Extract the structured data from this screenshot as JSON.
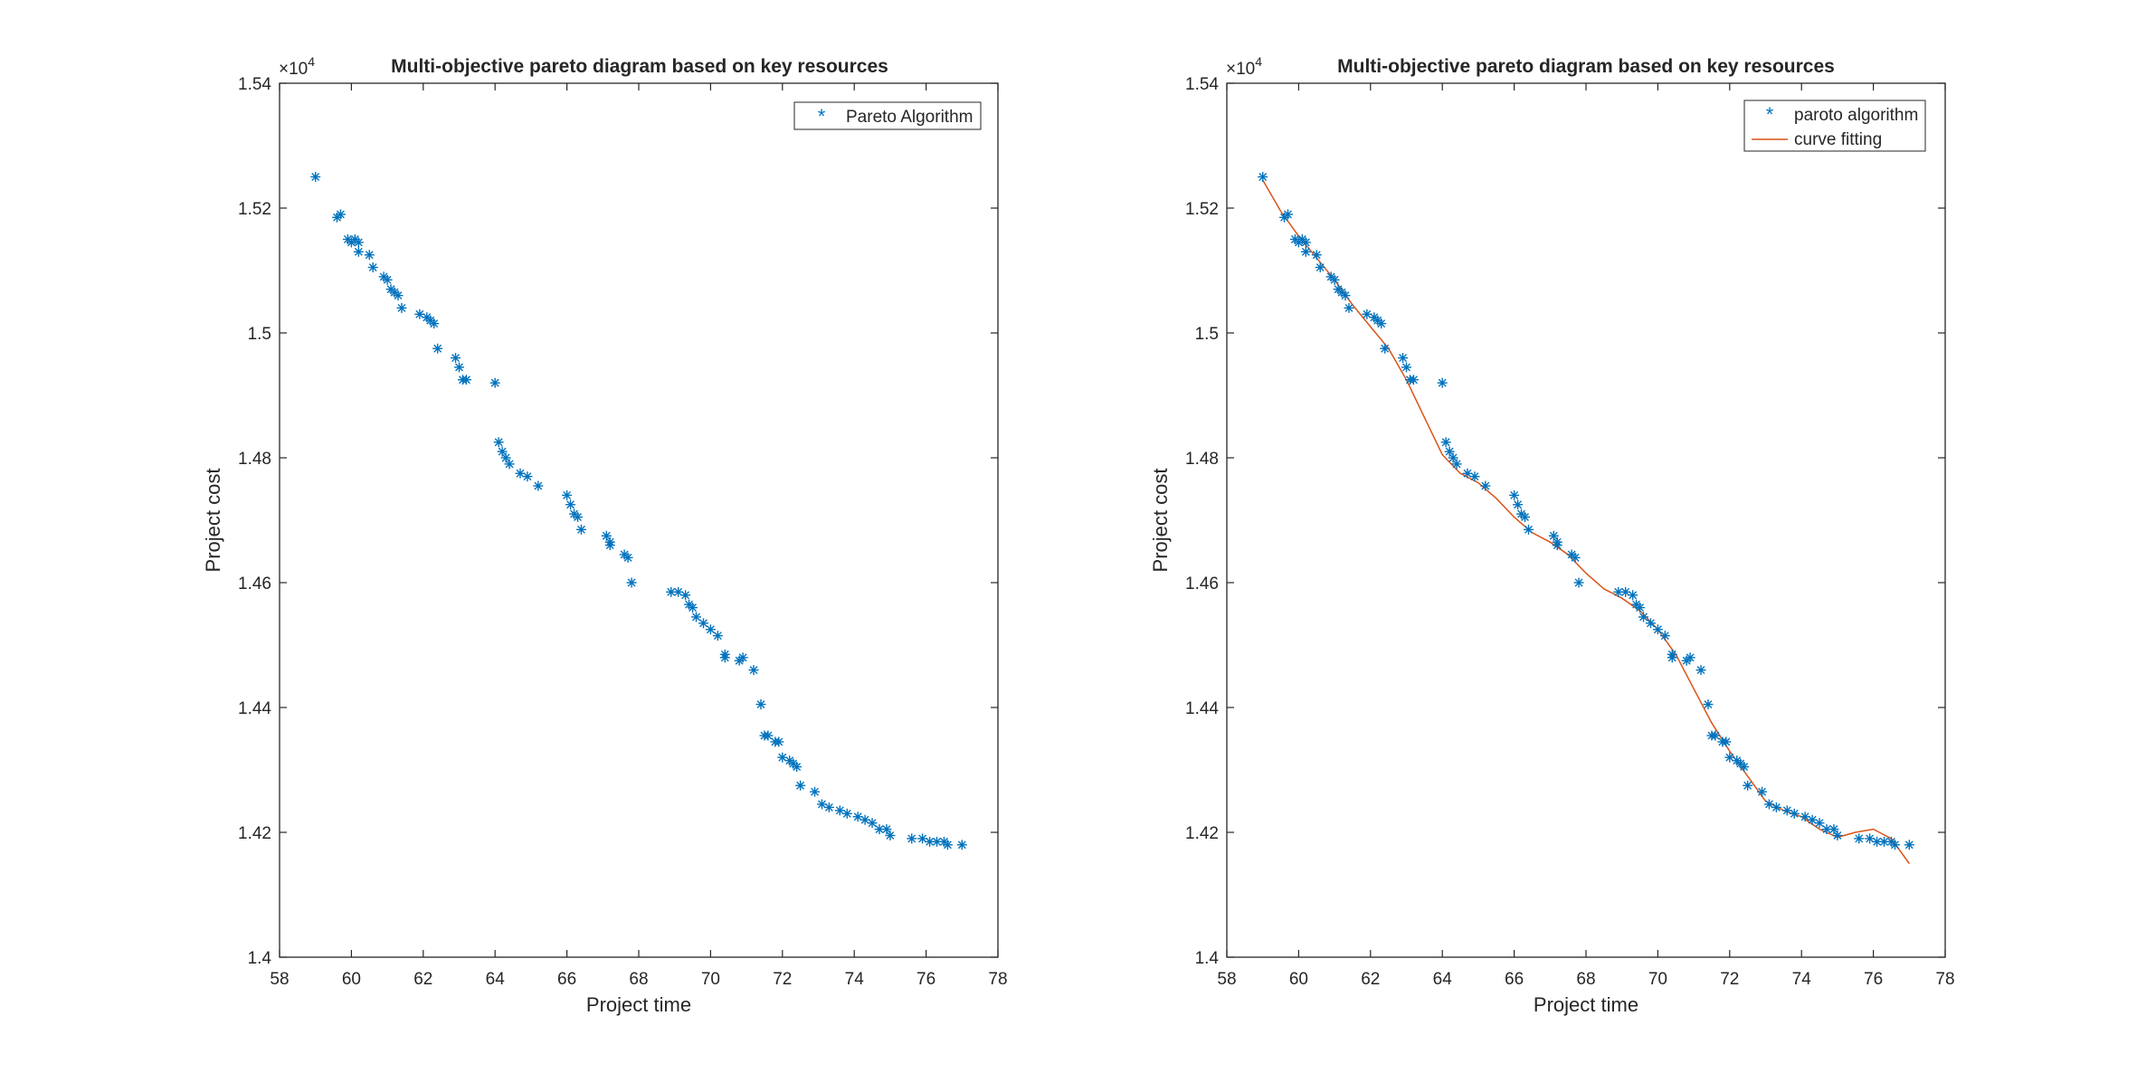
{
  "chart_data": [
    {
      "type": "scatter",
      "title": "Multi-objective pareto diagram based on key resources",
      "xlabel": "Project time",
      "ylabel": "Project cost",
      "exponent_label": "×10",
      "exponent_power": "4",
      "xlim": [
        58,
        78
      ],
      "ylim": [
        1.4,
        1.54
      ],
      "xticks": [
        58,
        60,
        62,
        64,
        66,
        68,
        70,
        72,
        74,
        76,
        78
      ],
      "xtick_labels": [
        "58",
        "60",
        "62",
        "64",
        "66",
        "68",
        "70",
        "72",
        "74",
        "76",
        "78"
      ],
      "yticks": [
        1.4,
        1.42,
        1.44,
        1.46,
        1.48,
        1.5,
        1.52,
        1.54
      ],
      "ytick_labels": [
        "1.4",
        "1.42",
        "1.44",
        "1.46",
        "1.48",
        "1.5",
        "1.52",
        "1.54"
      ],
      "grid": false,
      "legend_position": "top-right",
      "series": [
        {
          "name": "Pareto Algorithm",
          "style": "marker",
          "color": "#0072BD",
          "x": [
            59.0,
            59.6,
            59.7,
            59.9,
            60.0,
            60.1,
            60.2,
            60.2,
            60.5,
            60.6,
            60.9,
            61.0,
            61.1,
            61.2,
            61.3,
            61.4,
            61.9,
            62.1,
            62.2,
            62.3,
            62.4,
            62.9,
            63.0,
            63.1,
            63.2,
            64.0,
            64.1,
            64.2,
            64.3,
            64.4,
            64.7,
            64.9,
            65.2,
            66.0,
            66.1,
            66.2,
            66.3,
            66.4,
            67.1,
            67.2,
            67.2,
            67.6,
            67.7,
            67.8,
            68.9,
            69.1,
            69.3,
            69.4,
            69.5,
            69.6,
            69.8,
            70.0,
            70.2,
            70.4,
            70.4,
            70.8,
            70.9,
            71.2,
            71.4,
            71.5,
            71.6,
            71.8,
            71.9,
            72.0,
            72.2,
            72.3,
            72.4,
            72.5,
            72.9,
            73.1,
            73.3,
            73.6,
            73.8,
            74.1,
            74.3,
            74.5,
            74.7,
            74.9,
            75.0,
            75.6,
            75.9,
            76.1,
            76.3,
            76.5,
            76.6,
            77.0
          ],
          "y": [
            1.525,
            1.5185,
            1.519,
            1.515,
            1.5145,
            1.515,
            1.5145,
            1.513,
            1.5125,
            1.5105,
            1.509,
            1.5085,
            1.507,
            1.5065,
            1.506,
            1.504,
            1.503,
            1.5025,
            1.502,
            1.5015,
            1.4975,
            1.496,
            1.4945,
            1.4925,
            1.4925,
            1.492,
            1.4825,
            1.481,
            1.48,
            1.479,
            1.4775,
            1.477,
            1.4755,
            1.474,
            1.4725,
            1.471,
            1.4705,
            1.4685,
            1.4675,
            1.4665,
            1.466,
            1.4645,
            1.464,
            1.46,
            1.4585,
            1.4585,
            1.458,
            1.4565,
            1.456,
            1.4545,
            1.4535,
            1.4525,
            1.4515,
            1.4485,
            1.448,
            1.4475,
            1.448,
            1.446,
            1.4405,
            1.4355,
            1.4355,
            1.4345,
            1.4345,
            1.432,
            1.4315,
            1.431,
            1.4305,
            1.4275,
            1.4265,
            1.4245,
            1.424,
            1.4235,
            1.423,
            1.4225,
            1.422,
            1.4215,
            1.4205,
            1.4205,
            1.4195,
            1.419,
            1.419,
            1.4185,
            1.4185,
            1.4185,
            1.418,
            1.418
          ]
        }
      ]
    },
    {
      "type": "scatter",
      "title": "Multi-objective pareto diagram based on key resources",
      "xlabel": "Project time",
      "ylabel": "Project cost",
      "exponent_label": "×10",
      "exponent_power": "4",
      "xlim": [
        58,
        78
      ],
      "ylim": [
        1.4,
        1.54
      ],
      "xticks": [
        58,
        60,
        62,
        64,
        66,
        68,
        70,
        72,
        74,
        76,
        78
      ],
      "xtick_labels": [
        "58",
        "60",
        "62",
        "64",
        "66",
        "68",
        "70",
        "72",
        "74",
        "76",
        "78"
      ],
      "yticks": [
        1.4,
        1.42,
        1.44,
        1.46,
        1.48,
        1.5,
        1.52,
        1.54
      ],
      "ytick_labels": [
        "1.4",
        "1.42",
        "1.44",
        "1.46",
        "1.48",
        "1.5",
        "1.52",
        "1.54"
      ],
      "grid": false,
      "legend_position": "top-right",
      "series": [
        {
          "name": "paroto algorithm",
          "style": "marker",
          "color": "#0072BD",
          "x": [
            59.0,
            59.6,
            59.7,
            59.9,
            60.0,
            60.1,
            60.2,
            60.2,
            60.5,
            60.6,
            60.9,
            61.0,
            61.1,
            61.2,
            61.3,
            61.4,
            61.9,
            62.1,
            62.2,
            62.3,
            62.4,
            62.9,
            63.0,
            63.1,
            63.2,
            64.0,
            64.1,
            64.2,
            64.3,
            64.4,
            64.7,
            64.9,
            65.2,
            66.0,
            66.1,
            66.2,
            66.3,
            66.4,
            67.1,
            67.2,
            67.2,
            67.6,
            67.7,
            67.8,
            68.9,
            69.1,
            69.3,
            69.4,
            69.5,
            69.6,
            69.8,
            70.0,
            70.2,
            70.4,
            70.4,
            70.8,
            70.9,
            71.2,
            71.4,
            71.5,
            71.6,
            71.8,
            71.9,
            72.0,
            72.2,
            72.3,
            72.4,
            72.5,
            72.9,
            73.1,
            73.3,
            73.6,
            73.8,
            74.1,
            74.3,
            74.5,
            74.7,
            74.9,
            75.0,
            75.6,
            75.9,
            76.1,
            76.3,
            76.5,
            76.6,
            77.0
          ],
          "y": [
            1.525,
            1.5185,
            1.519,
            1.515,
            1.5145,
            1.515,
            1.5145,
            1.513,
            1.5125,
            1.5105,
            1.509,
            1.5085,
            1.507,
            1.5065,
            1.506,
            1.504,
            1.503,
            1.5025,
            1.502,
            1.5015,
            1.4975,
            1.496,
            1.4945,
            1.4925,
            1.4925,
            1.492,
            1.4825,
            1.481,
            1.48,
            1.479,
            1.4775,
            1.477,
            1.4755,
            1.474,
            1.4725,
            1.471,
            1.4705,
            1.4685,
            1.4675,
            1.4665,
            1.466,
            1.4645,
            1.464,
            1.46,
            1.4585,
            1.4585,
            1.458,
            1.4565,
            1.456,
            1.4545,
            1.4535,
            1.4525,
            1.4515,
            1.4485,
            1.448,
            1.4475,
            1.448,
            1.446,
            1.4405,
            1.4355,
            1.4355,
            1.4345,
            1.4345,
            1.432,
            1.4315,
            1.431,
            1.4305,
            1.4275,
            1.4265,
            1.4245,
            1.424,
            1.4235,
            1.423,
            1.4225,
            1.422,
            1.4215,
            1.4205,
            1.4205,
            1.4195,
            1.419,
            1.419,
            1.4185,
            1.4185,
            1.4185,
            1.418,
            1.418
          ]
        },
        {
          "name": "curve fitting",
          "style": "line",
          "color": "#D95319",
          "x": [
            59.0,
            59.5,
            60.0,
            60.5,
            61.0,
            61.5,
            62.0,
            62.5,
            63.0,
            63.5,
            64.0,
            64.5,
            65.0,
            65.5,
            66.0,
            66.5,
            67.0,
            67.5,
            68.0,
            68.5,
            69.0,
            69.5,
            70.0,
            70.5,
            71.0,
            71.5,
            72.0,
            72.5,
            73.0,
            73.5,
            74.0,
            74.5,
            75.0,
            75.5,
            76.0,
            76.5,
            77.0
          ],
          "y": [
            1.5245,
            1.5195,
            1.5155,
            1.512,
            1.5085,
            1.5045,
            1.501,
            1.4975,
            1.4925,
            1.4865,
            1.4805,
            1.4775,
            1.476,
            1.4735,
            1.4705,
            1.468,
            1.4665,
            1.4645,
            1.4615,
            1.459,
            1.4575,
            1.4555,
            1.4525,
            1.4485,
            1.443,
            1.4375,
            1.433,
            1.429,
            1.425,
            1.4235,
            1.4225,
            1.4205,
            1.4192,
            1.42,
            1.4205,
            1.419,
            1.415
          ]
        }
      ]
    }
  ]
}
